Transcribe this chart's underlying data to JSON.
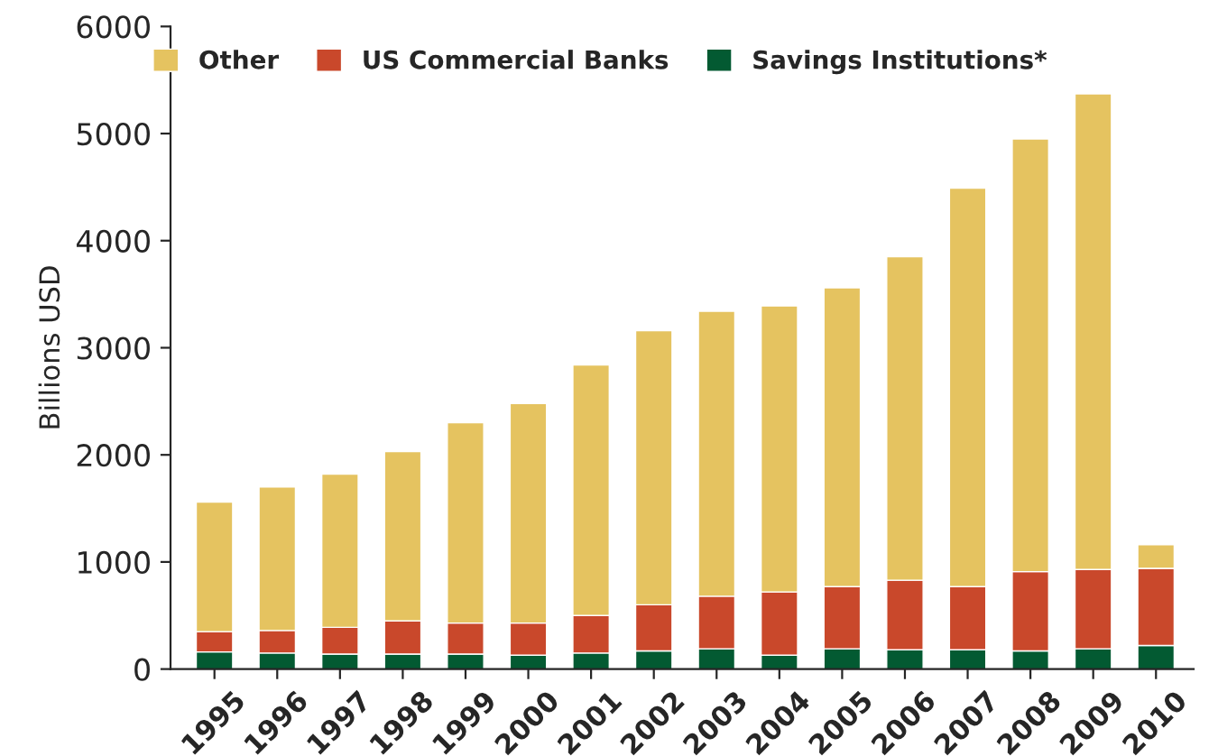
{
  "chart_data": {
    "type": "bar",
    "stacked": true,
    "ylabel": "Billions USD",
    "legend": "top",
    "categories": [
      "1995",
      "1996",
      "1997",
      "1998",
      "1999",
      "2000",
      "2001",
      "2002",
      "2003",
      "2004",
      "2005",
      "2006",
      "2007",
      "2008",
      "2009",
      "2010"
    ],
    "ylim": [
      0,
      6000
    ],
    "yticks": [
      0,
      1000,
      2000,
      3000,
      4000,
      5000,
      6000
    ],
    "grid": false,
    "series": [
      {
        "name": "Savings Institutions*",
        "color": "#035a32",
        "values": [
          160,
          150,
          140,
          140,
          140,
          130,
          150,
          170,
          190,
          130,
          190,
          180,
          180,
          170,
          190,
          220
        ]
      },
      {
        "name": "US Commercial Banks",
        "color": "#c9482b",
        "values": [
          190,
          210,
          250,
          310,
          290,
          300,
          350,
          430,
          490,
          590,
          580,
          650,
          590,
          740,
          740,
          720
        ]
      },
      {
        "name": "Other",
        "color": "#e5c360",
        "values": [
          1210,
          1340,
          1430,
          1580,
          1870,
          2050,
          2340,
          2560,
          2660,
          2670,
          2790,
          3020,
          3720,
          4040,
          4440,
          220
        ]
      }
    ]
  }
}
